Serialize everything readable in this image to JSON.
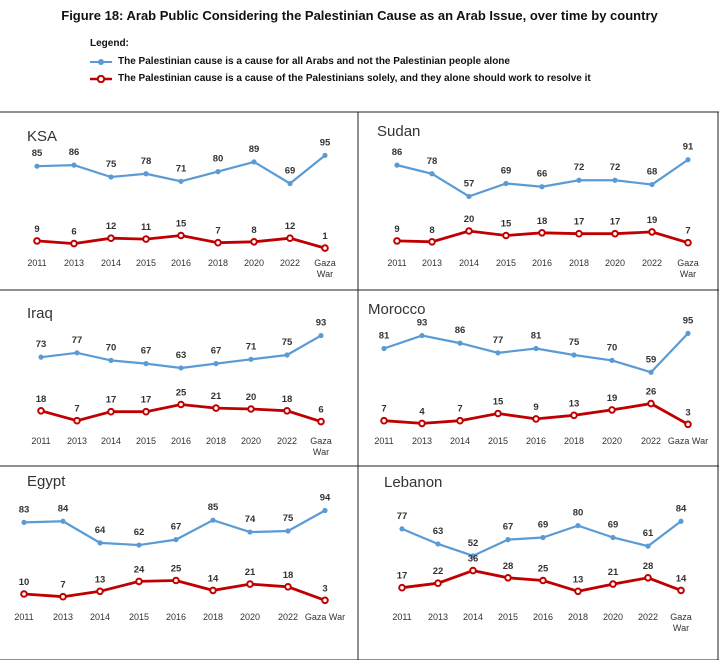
{
  "figure": {
    "title": "Figure 18: Arab Public Considering the Palestinian Cause as an Arab Issue, over time by country",
    "legend_heading": "Legend:"
  },
  "colors": {
    "blue": "#5B9BD5",
    "red": "#C00000"
  },
  "chart_data": {
    "type": "line",
    "categories": [
      "2011",
      "2013",
      "2014",
      "2015",
      "2016",
      "2018",
      "2020",
      "2022",
      "Gaza War"
    ],
    "series_names": [
      "The Palestinian cause is a cause for all Arabs and not the Palestinian people alone",
      "The Palestinian cause is a cause of the Palestinians solely, and they alone should work to resolve it"
    ],
    "legend_position": "top-left",
    "grid": false,
    "panels": [
      {
        "title": "KSA",
        "tick_labels": [
          "2011",
          "2013",
          "2014",
          "2015",
          "2016",
          "2018",
          "2020",
          "2022",
          "Gaza|War"
        ],
        "all_arabs": [
          85,
          86,
          75,
          78,
          71,
          80,
          89,
          69,
          95
        ],
        "palestinians_only": [
          9,
          6,
          12,
          11,
          15,
          7,
          8,
          12,
          1
        ]
      },
      {
        "title": "Sudan",
        "tick_labels": [
          "2011",
          "2013",
          "2014",
          "2015",
          "2016",
          "2018",
          "2020",
          "2022",
          "Gaza|War"
        ],
        "all_arabs": [
          86,
          78,
          57,
          69,
          66,
          72,
          72,
          68,
          91
        ],
        "palestinians_only": [
          9,
          8,
          20,
          15,
          18,
          17,
          17,
          19,
          7
        ]
      },
      {
        "title": "Iraq",
        "tick_labels": [
          "2011",
          "2013",
          "2014",
          "2015",
          "2016",
          "2018",
          "2020",
          "2022",
          "Gaza|War"
        ],
        "all_arabs": [
          73,
          77,
          70,
          67,
          63,
          67,
          71,
          75,
          93
        ],
        "palestinians_only": [
          18,
          7,
          17,
          17,
          25,
          21,
          20,
          18,
          6
        ]
      },
      {
        "title": "Morocco",
        "tick_labels": [
          "2011",
          "2013",
          "2014",
          "2015",
          "2016",
          "2018",
          "2020",
          "2022",
          "Gaza War"
        ],
        "all_arabs": [
          81,
          93,
          86,
          77,
          81,
          75,
          70,
          59,
          95
        ],
        "palestinians_only": [
          7,
          4,
          7,
          15,
          9,
          13,
          19,
          26,
          3
        ]
      },
      {
        "title": "Egypt",
        "tick_labels": [
          "2011",
          "2013",
          "2014",
          "2015",
          "2016",
          "2018",
          "2020",
          "2022",
          "Gaza War"
        ],
        "all_arabs": [
          83,
          84,
          64,
          62,
          67,
          85,
          74,
          75,
          94
        ],
        "palestinians_only": [
          10,
          7,
          13,
          24,
          25,
          14,
          21,
          18,
          3
        ]
      },
      {
        "title": "Lebanon",
        "tick_labels": [
          "2011",
          "2013",
          "2014",
          "2015",
          "2016",
          "2018",
          "2020",
          "2022",
          "Gaza|War"
        ],
        "all_arabs": [
          77,
          63,
          52,
          67,
          69,
          80,
          69,
          61,
          84
        ],
        "palestinians_only": [
          17,
          22,
          36,
          28,
          25,
          13,
          21,
          28,
          14
        ]
      }
    ]
  }
}
